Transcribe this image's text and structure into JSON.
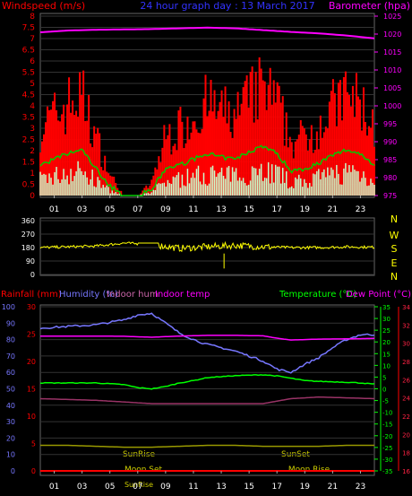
{
  "header": {
    "left_title": "Windspeed (m/s)",
    "center_title": "24 hour graph day : 13 March 2017",
    "right_title": "Barometer (hpa)"
  },
  "direction_letters": [
    "N",
    "W",
    "S",
    "E",
    "N"
  ],
  "bottom_header": {
    "rainfall": "Rainfall (mm)",
    "humidity": "Humidity (%)",
    "indoor_hum": "Indoor hum",
    "indoor_temp": "Indoor temp",
    "temperature": "Temperature (°C)",
    "dew_point": "Dew Point (°C)"
  },
  "annotations": {
    "sunrise": "SunRise",
    "sunset": "SunSet",
    "moonset": "Moon Set",
    "moonrise": "Moon Rise",
    "sunrise_bottom": "SunRise"
  },
  "colors": {
    "wind": "#ff0000",
    "gust_bars": "#ccffcc",
    "wind_avg": "#00cc00",
    "barometer": "#ff00ff",
    "direction": "#ffff00",
    "humidity": "#7777ff",
    "temperature": "#00ff00",
    "indoor_temp": "#ff00ff",
    "indoor_hum": "#993366",
    "dew_point": "#999900",
    "rain": "#ff0000"
  },
  "chart_data": [
    {
      "type": "line",
      "title": "24 hour graph day : 13 March 2017",
      "ylabel_left": "Windspeed (m/s)",
      "ylabel_right": "Barometer (hpa)",
      "x_ticks": [
        "01",
        "03",
        "05",
        "07",
        "09",
        "11",
        "13",
        "15",
        "17",
        "19",
        "21",
        "23"
      ],
      "xlim": [
        0,
        24
      ],
      "ylim_left": [
        0,
        8
      ],
      "y_ticks_left": [
        "0",
        "0.5",
        "1",
        "1.5",
        "2",
        "2.5",
        "3",
        "3.5",
        "4",
        "4.5",
        "5",
        "5.5",
        "6",
        "6.5",
        "7",
        "7.5",
        "8"
      ],
      "ylim_right": [
        975,
        1025
      ],
      "y_ticks_right": [
        "975",
        "980",
        "985",
        "990",
        "995",
        "1000",
        "1005",
        "1010",
        "1015",
        "1020",
        "1025"
      ],
      "series": [
        {
          "name": "Windspeed (m/s)",
          "x": [
            0,
            1,
            2,
            3,
            4,
            5,
            6,
            7,
            8,
            9,
            10,
            11,
            12,
            13,
            14,
            15,
            16,
            17,
            18,
            19,
            20,
            21,
            22,
            23,
            24
          ],
          "values": [
            1.6,
            1.9,
            2.2,
            2.4,
            1.4,
            0.5,
            0.0,
            0.0,
            0.3,
            1.4,
            1.6,
            1.9,
            2.2,
            2.0,
            1.9,
            2.3,
            2.6,
            2.2,
            1.3,
            1.4,
            1.7,
            2.1,
            2.4,
            2.2,
            1.6
          ]
        },
        {
          "name": "Barometer (hpa)",
          "x": [
            0,
            2,
            4,
            6,
            8,
            10,
            12,
            14,
            16,
            18,
            20,
            22,
            24
          ],
          "values": [
            1020.5,
            1021,
            1021.2,
            1021.3,
            1021.4,
            1021.6,
            1021.8,
            1021.6,
            1021.1,
            1020.6,
            1020.2,
            1019.6,
            1018.8
          ]
        }
      ]
    },
    {
      "type": "line",
      "title": "",
      "ylim": [
        0,
        360
      ],
      "y_ticks": [
        "0",
        "90",
        "180",
        "270",
        "360"
      ],
      "series": [
        {
          "name": "",
          "x": [
            0,
            2,
            4,
            6,
            8,
            10,
            12,
            14,
            16,
            18,
            20,
            22,
            24
          ],
          "values": [
            180,
            185,
            190,
            210,
            200,
            175,
            185,
            195,
            185,
            180,
            180,
            185,
            182
          ]
        }
      ]
    },
    {
      "type": "line",
      "title": "",
      "x_ticks": [
        "01",
        "03",
        "05",
        "07",
        "09",
        "11",
        "13",
        "15",
        "17",
        "19",
        "21",
        "23"
      ],
      "xlim": [
        0,
        24
      ],
      "ylim_rain": [
        0,
        30
      ],
      "y_ticks_rain": [
        "0",
        "5",
        "10",
        "15",
        "20",
        "25",
        "30"
      ],
      "ylim_hum": [
        0,
        100
      ],
      "y_ticks_hum": [
        "0",
        "10",
        "20",
        "30",
        "40",
        "50",
        "60",
        "70",
        "80",
        "90",
        "100"
      ],
      "ylim_temp": [
        -35,
        35
      ],
      "y_ticks_temp": [
        "-35",
        "-30",
        "-25",
        "-20",
        "-15",
        "-10",
        "-5",
        "0",
        "5",
        "10",
        "15",
        "20",
        "25",
        "30",
        "35"
      ],
      "ylim_dew": [
        16,
        34
      ],
      "y_ticks_dew": [
        "16",
        "18",
        "20",
        "22",
        "24",
        "26",
        "28",
        "30",
        "32",
        "34"
      ],
      "series": [
        {
          "name": "Humidity (%)",
          "x": [
            0,
            2,
            4,
            6,
            7,
            8,
            9,
            10,
            11,
            12,
            13,
            14,
            15,
            16,
            17,
            18,
            19,
            20,
            21,
            22,
            23,
            24
          ],
          "values": [
            87,
            88,
            89,
            92,
            95,
            96,
            90,
            84,
            80,
            77,
            75,
            73,
            70,
            67,
            62,
            60,
            65,
            69,
            75,
            80,
            83,
            83
          ]
        },
        {
          "name": "Temperature (°C)",
          "x": [
            0,
            2,
            4,
            6,
            7,
            8,
            9,
            10,
            11,
            12,
            13,
            14,
            15,
            16,
            17,
            18,
            19,
            20,
            21,
            22,
            23,
            24
          ],
          "values": [
            2.5,
            2.5,
            2.5,
            1.8,
            0.5,
            0.0,
            1.0,
            2.5,
            3.5,
            4.8,
            5.2,
            5.6,
            5.8,
            6.0,
            5.5,
            4.5,
            3.5,
            3.2,
            3.0,
            2.8,
            2.5,
            2.0
          ]
        },
        {
          "name": "Indoor temp",
          "x": [
            0,
            2,
            4,
            6,
            7,
            8,
            10,
            12,
            14,
            16,
            17,
            18,
            19,
            20,
            22,
            24
          ],
          "values": [
            22.5,
            22.5,
            22.5,
            22.4,
            22.2,
            22.0,
            22.5,
            22.8,
            22.8,
            22.6,
            21.6,
            20.8,
            21.0,
            21.2,
            21.3,
            21.5
          ]
        },
        {
          "name": "Indoor hum",
          "x": [
            0,
            4,
            8,
            12,
            16,
            18,
            20,
            24
          ],
          "values": [
            44,
            43,
            41,
            41,
            41,
            44,
            45,
            44
          ]
        },
        {
          "name": "Dew Point (°C)",
          "x": [
            0,
            2,
            4,
            6,
            8,
            10,
            12,
            14,
            16,
            18,
            20,
            22,
            24
          ],
          "values": [
            18.8,
            18.8,
            18.7,
            18.6,
            18.6,
            18.7,
            18.8,
            18.8,
            18.7,
            18.7,
            18.7,
            18.8,
            18.8
          ]
        },
        {
          "name": "Rainfall (mm)",
          "x": [
            0,
            24
          ],
          "values": [
            0,
            0
          ]
        }
      ]
    }
  ]
}
